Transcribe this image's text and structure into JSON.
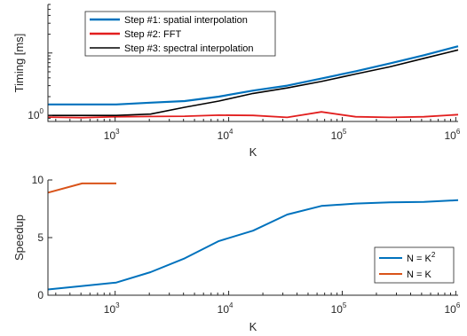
{
  "chart_data": [
    {
      "type": "line",
      "xlabel": "K",
      "ylabel": "Timing [ms]",
      "xscale": "log",
      "yscale": "log",
      "xlim": [
        256,
        1048576
      ],
      "ylim": [
        0.8,
        60
      ],
      "xticks": [
        1000,
        10000,
        100000,
        1000000
      ],
      "xtick_labels": [
        "10",
        "10",
        "10",
        "10"
      ],
      "xtick_exponents": [
        "3",
        "4",
        "5",
        "6"
      ],
      "yticks": [
        1
      ],
      "ytick_labels": [
        "10"
      ],
      "ytick_exponents": [
        "0"
      ],
      "legend_position": "top-left",
      "x": [
        256,
        512,
        1024,
        2048,
        4096,
        8192,
        16384,
        32768,
        65536,
        131072,
        262144,
        524288,
        1048576
      ],
      "series": [
        {
          "name": "Step #1: spatial interpolation",
          "color": "#0072BD",
          "values": [
            1.5,
            1.5,
            1.5,
            1.6,
            1.7,
            2.0,
            2.5,
            3.0,
            3.9,
            5.1,
            6.8,
            9.2,
            12.8
          ]
        },
        {
          "name": "Step #2: FFT",
          "color": "#E21E1E",
          "values": [
            0.94,
            0.92,
            0.95,
            0.96,
            0.97,
            1.01,
            1.0,
            0.93,
            1.14,
            0.95,
            0.93,
            0.95,
            1.03
          ]
        },
        {
          "name": "Step #3: spectral interpolation",
          "color": "#000000",
          "values": [
            1.0,
            1.0,
            1.0,
            1.05,
            1.35,
            1.7,
            2.25,
            2.75,
            3.5,
            4.6,
            6.0,
            8.2,
            11.2
          ]
        }
      ]
    },
    {
      "type": "line",
      "xlabel": "K",
      "ylabel": "Speedup",
      "xscale": "log",
      "xlim": [
        256,
        1048576
      ],
      "ylim": [
        0,
        10
      ],
      "xticks": [
        1000,
        10000,
        100000,
        1000000
      ],
      "xtick_labels": [
        "10",
        "10",
        "10",
        "10"
      ],
      "xtick_exponents": [
        "3",
        "4",
        "5",
        "6"
      ],
      "yticks": [
        0,
        5,
        10
      ],
      "ytick_labels": [
        "0",
        "5",
        "10"
      ],
      "legend_position": "bottom-right",
      "series": [
        {
          "name": "N = K",
          "name_superscript": "2",
          "color": "#0072BD",
          "x": [
            256,
            512,
            1024,
            2048,
            4096,
            8192,
            16384,
            32768,
            65536,
            131072,
            262144,
            524288,
            1048576
          ],
          "values": [
            0.5,
            0.8,
            1.1,
            2.0,
            3.2,
            4.7,
            5.6,
            7.0,
            7.75,
            7.95,
            8.05,
            8.1,
            8.25
          ]
        },
        {
          "name": "N = K",
          "color": "#D95319",
          "x": [
            256,
            512,
            1024
          ],
          "values": [
            8.9,
            9.7,
            9.7
          ]
        }
      ]
    }
  ]
}
